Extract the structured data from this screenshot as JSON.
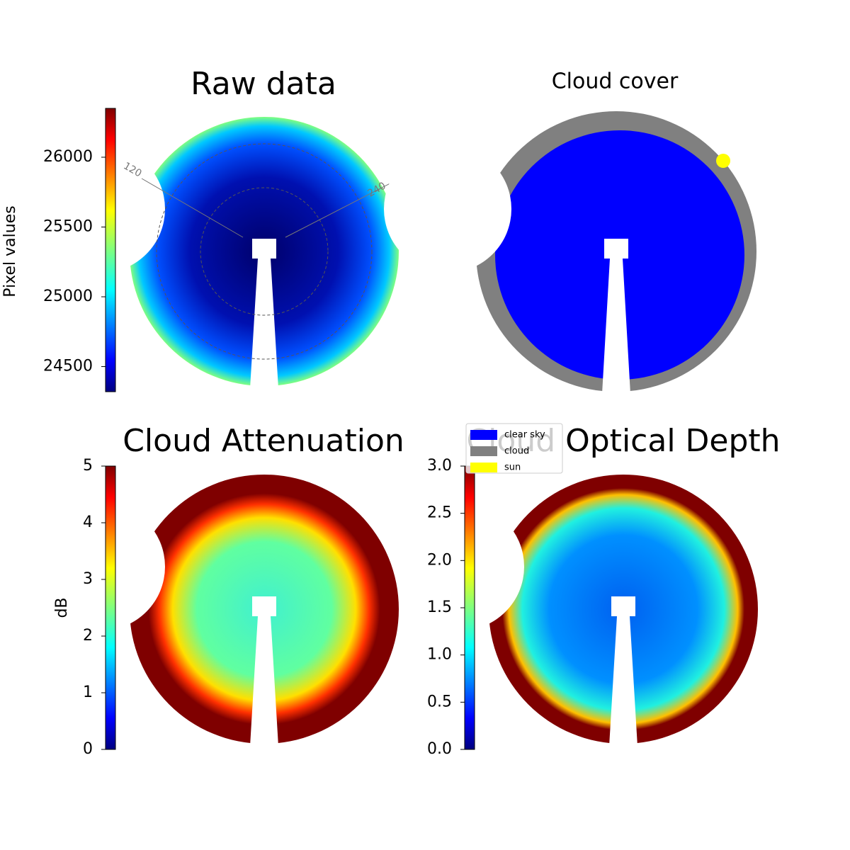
{
  "chart_data": [
    {
      "type": "image",
      "title": "Raw data",
      "colorbar_label": "Pixel values",
      "colormap": "jet",
      "clim": [
        24320,
        26350
      ],
      "cticks": [
        24500,
        25000,
        25500,
        26000
      ],
      "annotations": [
        "120",
        "240"
      ]
    },
    {
      "type": "categorical_image",
      "title": "Cloud cover",
      "categories": [
        "clear sky",
        "cloud",
        "sun"
      ],
      "colors": [
        "#0000ff",
        "#808080",
        "#ffff00"
      ]
    },
    {
      "type": "image",
      "title": "Cloud Attenuation",
      "colorbar_label": "dB",
      "colormap": "jet",
      "clim": [
        0,
        5
      ],
      "cticks": [
        0,
        1,
        2,
        3,
        4,
        5
      ]
    },
    {
      "type": "image",
      "title": "Cloud Optical Depth",
      "colormap": "jet",
      "clim": [
        0,
        3
      ],
      "cticks": [
        {
          "value": 0,
          "label": "0.0"
        },
        0.5,
        {
          "value": 1,
          "label": "1.0"
        },
        1.5,
        {
          "value": 2,
          "label": "2.0"
        },
        2.5,
        {
          "value": 3,
          "label": "3.0"
        }
      ]
    }
  ]
}
